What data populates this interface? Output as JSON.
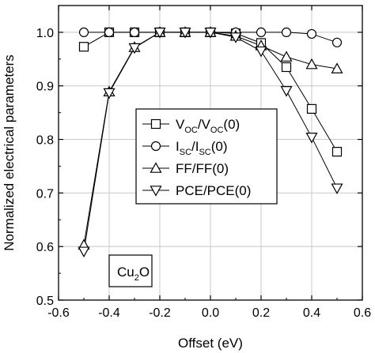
{
  "chart_data": {
    "type": "line",
    "xlabel": "Offset (eV)",
    "ylabel": "Normalized electrical parameters",
    "xlim": [
      -0.6,
      0.6
    ],
    "ylim": [
      0.5,
      1.05
    ],
    "grid": true,
    "xticks": [
      "-0.6",
      "-0.4",
      "-0.2",
      "0.0",
      "0.2",
      "0.4",
      "0.6"
    ],
    "yticks": [
      "0.5",
      "0.6",
      "0.7",
      "0.8",
      "0.9",
      "1.0"
    ],
    "x": [
      -0.5,
      -0.4,
      -0.3,
      -0.2,
      -0.1,
      0.0,
      0.1,
      0.2,
      0.3,
      0.4,
      0.5
    ],
    "annotation": {
      "main": "Cu",
      "sub": "2",
      "tail": "O"
    },
    "legend_position": "center",
    "series": [
      {
        "name": "VOC/VOC(0)",
        "marker": "square",
        "label": {
          "a": "V",
          "a_sub": "OC",
          "b": "/V",
          "b_sub": "OC",
          "c": "(0)"
        },
        "values": [
          0.973,
          1.0,
          1.0,
          1.0,
          1.0,
          1.0,
          0.998,
          0.98,
          0.935,
          0.857,
          0.777
        ]
      },
      {
        "name": "ISC/ISC(0)",
        "marker": "circle",
        "label": {
          "a": "I",
          "a_sub": "SC",
          "b": "/I",
          "b_sub": "SC",
          "c": "(0)"
        },
        "values": [
          1.0,
          1.0,
          1.0,
          1.0,
          1.0,
          1.0,
          1.0,
          1.0,
          1.0,
          0.997,
          0.981
        ]
      },
      {
        "name": "FF/FF(0)",
        "marker": "triangle-up",
        "label": {
          "a": "FF/FF(0)",
          "a_sub": "",
          "b": "",
          "b_sub": "",
          "c": ""
        },
        "values": [
          0.603,
          0.889,
          0.972,
          1.0,
          1.0,
          1.0,
          0.993,
          0.975,
          0.954,
          0.94,
          0.932
        ]
      },
      {
        "name": "PCE/PCE(0)",
        "marker": "triangle-down",
        "label": {
          "a": "PCE/PCE(0)",
          "a_sub": "",
          "b": "",
          "b_sub": "",
          "c": ""
        },
        "values": [
          0.591,
          0.887,
          0.971,
          1.0,
          1.0,
          1.0,
          0.991,
          0.965,
          0.891,
          0.804,
          0.709
        ]
      }
    ]
  }
}
